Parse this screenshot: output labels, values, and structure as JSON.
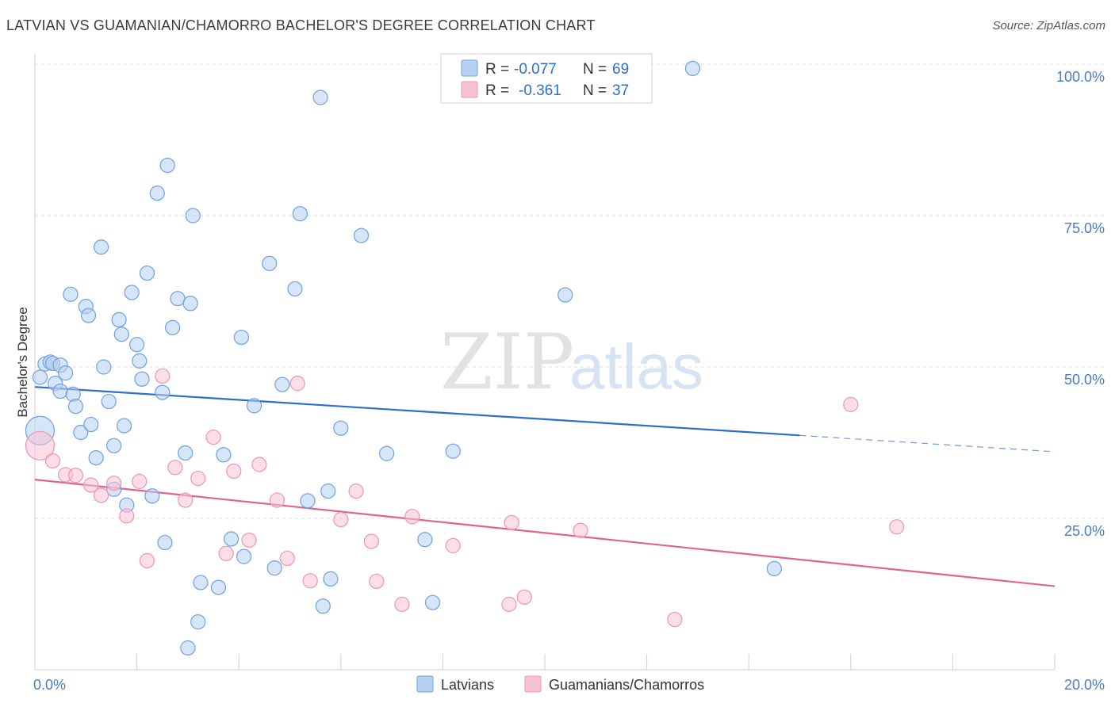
{
  "header": {
    "title": "LATVIAN VS GUAMANIAN/CHAMORRO BACHELOR'S DEGREE CORRELATION CHART",
    "source": "Source: ZipAtlas.com"
  },
  "watermark": {
    "zip": "ZIP",
    "atlas": "atlas"
  },
  "legend": {
    "r_label": "R =",
    "n_label": "N =",
    "rows": [
      {
        "r": "-0.077",
        "n": "69",
        "color": "#b7d0f2"
      },
      {
        "r": "-0.361",
        "n": "37",
        "color": "#f7c3d4"
      }
    ]
  },
  "chart_data": {
    "type": "scatter",
    "title": "LATVIAN VS GUAMANIAN/CHAMORRO BACHELOR'S DEGREE CORRELATION CHART",
    "xlabel": "",
    "ylabel": "Bachelor's Degree",
    "xlim": [
      0,
      20
    ],
    "ylim": [
      0,
      100
    ],
    "x_tick_labels": [
      "0.0%",
      "20.0%"
    ],
    "y_tick_labels": [
      "100.0%",
      "75.0%",
      "50.0%",
      "25.0%"
    ],
    "y_ticks": [
      100,
      75,
      50,
      25
    ],
    "grid": true,
    "series": [
      {
        "name": "Latvians",
        "color": "#6fa0e0",
        "fill": "#b7d0f2",
        "trend": {
          "x0": 0,
          "y0": 46.7,
          "x1": 15.0,
          "y1": 38.7,
          "dash_to_x": 20,
          "dash_to_y": 36.0,
          "color": "#2a6fcc"
        },
        "points": [
          [
            0.1,
            39.5
          ],
          [
            0.1,
            48.3
          ],
          [
            0.2,
            50.5
          ],
          [
            0.3,
            50.8
          ],
          [
            0.4,
            47.3
          ],
          [
            0.35,
            50.6
          ],
          [
            0.5,
            46.0
          ],
          [
            0.5,
            50.3
          ],
          [
            0.6,
            49.0
          ],
          [
            0.7,
            62.0
          ],
          [
            0.75,
            45.5
          ],
          [
            0.8,
            43.5
          ],
          [
            0.9,
            39.2
          ],
          [
            1.0,
            60.0
          ],
          [
            1.05,
            58.5
          ],
          [
            1.1,
            40.5
          ],
          [
            1.2,
            35.0
          ],
          [
            1.3,
            69.8
          ],
          [
            1.35,
            50.0
          ],
          [
            1.45,
            44.3
          ],
          [
            1.55,
            29.8
          ],
          [
            1.55,
            37.0
          ],
          [
            1.65,
            57.8
          ],
          [
            1.7,
            55.4
          ],
          [
            1.75,
            40.3
          ],
          [
            1.8,
            27.2
          ],
          [
            1.9,
            62.3
          ],
          [
            2.0,
            53.7
          ],
          [
            2.05,
            51.0
          ],
          [
            2.1,
            48.0
          ],
          [
            2.2,
            65.5
          ],
          [
            2.3,
            28.7
          ],
          [
            2.4,
            78.7
          ],
          [
            2.5,
            45.8
          ],
          [
            2.55,
            21.0
          ],
          [
            2.6,
            83.3
          ],
          [
            2.7,
            56.5
          ],
          [
            2.8,
            61.3
          ],
          [
            2.95,
            35.8
          ],
          [
            3.05,
            60.5
          ],
          [
            3.1,
            75.0
          ],
          [
            3.2,
            7.9
          ],
          [
            3.0,
            3.6
          ],
          [
            3.25,
            14.4
          ],
          [
            3.6,
            13.6
          ],
          [
            3.7,
            35.5
          ],
          [
            3.85,
            21.6
          ],
          [
            4.05,
            54.9
          ],
          [
            4.1,
            18.7
          ],
          [
            4.3,
            43.6
          ],
          [
            4.6,
            67.1
          ],
          [
            4.7,
            16.8
          ],
          [
            4.85,
            47.1
          ],
          [
            5.1,
            62.9
          ],
          [
            5.2,
            75.3
          ],
          [
            5.35,
            27.9
          ],
          [
            5.6,
            94.5
          ],
          [
            5.65,
            10.5
          ],
          [
            5.75,
            29.5
          ],
          [
            5.8,
            15.0
          ],
          [
            6.0,
            39.9
          ],
          [
            6.4,
            71.7
          ],
          [
            6.9,
            35.7
          ],
          [
            7.65,
            21.5
          ],
          [
            7.8,
            11.1
          ],
          [
            8.2,
            36.1
          ],
          [
            10.4,
            61.9
          ],
          [
            12.9,
            99.3
          ],
          [
            14.5,
            16.7
          ]
        ]
      },
      {
        "name": "Guamanians/Chamorros",
        "color": "#ee95b2",
        "fill": "#f7c3d4",
        "trend": {
          "x0": 0,
          "y0": 31.4,
          "x1": 20,
          "y1": 13.8,
          "color": "#e06491"
        },
        "points": [
          [
            0.1,
            37.0
          ],
          [
            0.35,
            34.5
          ],
          [
            0.6,
            32.2
          ],
          [
            0.8,
            32.1
          ],
          [
            1.1,
            30.5
          ],
          [
            1.3,
            28.8
          ],
          [
            1.55,
            30.8
          ],
          [
            1.8,
            25.4
          ],
          [
            2.05,
            31.1
          ],
          [
            2.2,
            18.0
          ],
          [
            2.5,
            48.5
          ],
          [
            2.75,
            33.4
          ],
          [
            2.95,
            28.0
          ],
          [
            3.2,
            31.6
          ],
          [
            3.5,
            38.4
          ],
          [
            3.75,
            19.2
          ],
          [
            3.9,
            32.8
          ],
          [
            4.2,
            21.4
          ],
          [
            4.4,
            33.9
          ],
          [
            4.75,
            28.0
          ],
          [
            4.95,
            18.4
          ],
          [
            5.15,
            47.3
          ],
          [
            5.4,
            14.7
          ],
          [
            6.0,
            24.8
          ],
          [
            6.3,
            29.5
          ],
          [
            6.6,
            21.2
          ],
          [
            6.7,
            14.6
          ],
          [
            7.2,
            10.8
          ],
          [
            7.4,
            25.3
          ],
          [
            8.2,
            20.5
          ],
          [
            9.3,
            10.8
          ],
          [
            9.35,
            24.3
          ],
          [
            9.6,
            12.0
          ],
          [
            10.7,
            23.0
          ],
          [
            12.55,
            8.3
          ],
          [
            16.0,
            43.8
          ],
          [
            16.9,
            23.6
          ]
        ]
      }
    ]
  },
  "bottom_legend": [
    {
      "label": "Latvians",
      "color": "#b7d0f2",
      "stroke": "#6fa0e0"
    },
    {
      "label": "Guamanians/Chamorros",
      "color": "#f7c3d4",
      "stroke": "#ee95b2"
    }
  ]
}
